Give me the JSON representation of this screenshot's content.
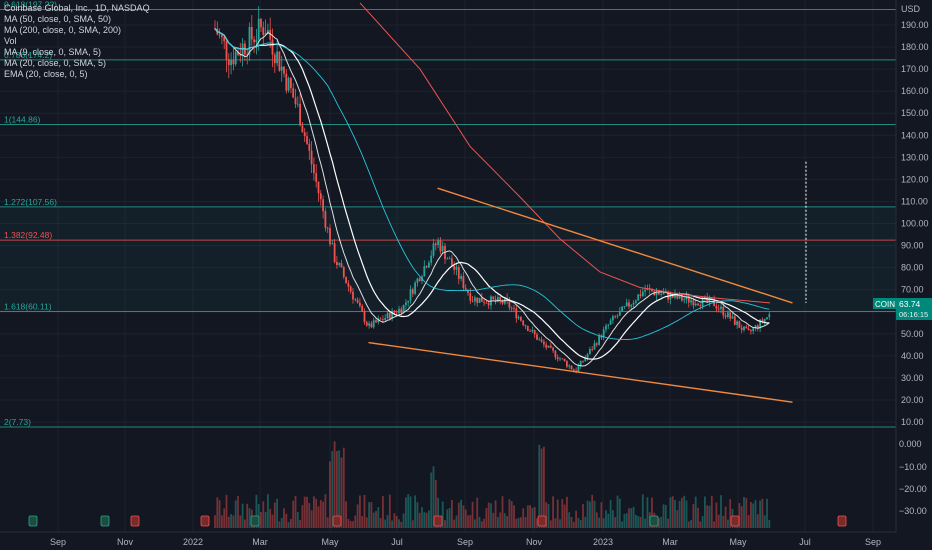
{
  "symbol_title": "Coinbase Global, Inc., 1D, NASDAQ",
  "indicators": [
    "MA (50, close, 0, SMA, 50)",
    "MA (200, close, 0, SMA, 200)",
    "Vol",
    "MA (9, close, 0, SMA, 5)",
    "MA (20, close, 0, SMA, 5)",
    "EMA (20, close, 0, 5)"
  ],
  "currency": "USD",
  "price_badge": {
    "ticker": "COIN",
    "price": "63.74",
    "sub": "06:16:15"
  },
  "colors": {
    "background": "#131722",
    "up": "#26a69a",
    "down": "#ef5350",
    "trendline": "#f0883e",
    "ma50": "#26c6da",
    "ma200": "#ef5350",
    "fib_teal": "#26a69a",
    "fib_red": "#ef5350",
    "accent": "#00897b"
  },
  "chart_data": {
    "type": "candlestick",
    "x_ticks": [
      "Sep",
      "Nov",
      "2022",
      "Mar",
      "May",
      "Jul",
      "Sep",
      "Nov",
      "2023",
      "Mar",
      "May",
      "Jul",
      "Sep"
    ],
    "y_ticks": [
      190,
      180,
      170,
      160,
      150,
      140,
      130,
      120,
      110,
      100,
      90,
      80,
      70,
      60,
      50,
      40,
      30,
      20,
      10
    ],
    "vol_ticks": [
      "0.000",
      "−10.00",
      "−20.00",
      "−30.00"
    ],
    "fib_levels": [
      {
        "label": "0.618(197.??)",
        "value": 197.0,
        "color": "#26a69a"
      },
      {
        "label": "0.786(174.2)",
        "value": 174.2,
        "color": "#26a69a"
      },
      {
        "label": "1(144.86)",
        "value": 144.86,
        "color": "#26a69a"
      },
      {
        "label": "1.272(107.56)",
        "value": 107.56,
        "color": "#26a69a"
      },
      {
        "label": "1.382(92.48)",
        "value": 92.48,
        "color": "#ef5350"
      },
      {
        "label": "1.618(60.11)",
        "value": 60.11,
        "color": "#26a69a"
      },
      {
        "label": "2(7.73)",
        "value": 7.73,
        "color": "#26a69a"
      }
    ],
    "trendlines": [
      {
        "name": "upper",
        "from": [
          "Aug 2022",
          116
        ],
        "to": [
          "Jun 2023",
          64
        ]
      },
      {
        "name": "lower",
        "from": [
          "Jun 2022",
          46
        ],
        "to": [
          "Jun 2023",
          19
        ]
      }
    ],
    "price_path": [
      [
        "Jan 2022",
        205
      ],
      [
        "Feb 2022",
        175
      ],
      [
        "Mar 2022",
        190
      ],
      [
        "Apr 2022",
        150
      ],
      [
        "May 2022",
        85
      ],
      [
        "Jun 2022",
        53
      ],
      [
        "Jul 2022",
        62
      ],
      [
        "Aug 2022",
        92
      ],
      [
        "Sep 2022",
        66
      ],
      [
        "Oct 2022",
        64
      ],
      [
        "Nov 2022",
        46
      ],
      [
        "Dec 2022",
        33
      ],
      [
        "Jan 2023",
        55
      ],
      [
        "Feb 2023",
        70
      ],
      [
        "Mar 2023",
        66
      ],
      [
        "Apr 2023",
        64
      ],
      [
        "May 2023",
        50
      ],
      [
        "Jun 2023",
        63.74
      ]
    ]
  }
}
